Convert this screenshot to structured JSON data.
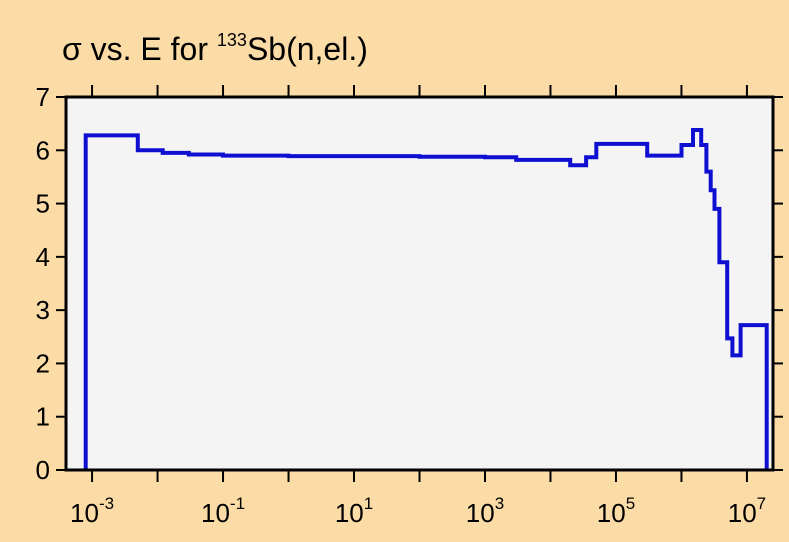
{
  "colors": {
    "background": "#fbdca7",
    "plot_area": "#f4f4f4",
    "line": "#0f0fd2",
    "axis": "#000000"
  },
  "chart_data": {
    "type": "line",
    "step": true,
    "title": {
      "symbol": "σ",
      "text_before_isotope": " vs. E for ",
      "isotope_mass": "133",
      "text_after_isotope": "Sb(n,el.)"
    },
    "xlabel": "",
    "ylabel": "",
    "x_scale": "log",
    "xlim": [
      0.0004,
      25000000
    ],
    "ylim": [
      0,
      7
    ],
    "grid": false,
    "legend": "none",
    "x_ticks": [
      {
        "value": 0.001,
        "base": "10",
        "exp": "-3"
      },
      {
        "value": 0.1,
        "base": "10",
        "exp": "-1"
      },
      {
        "value": 10,
        "base": "10",
        "exp": "1"
      },
      {
        "value": 1000,
        "base": "10",
        "exp": "3"
      },
      {
        "value": 100000,
        "base": "10",
        "exp": "5"
      },
      {
        "value": 10000000,
        "base": "10",
        "exp": "7"
      }
    ],
    "y_ticks": [
      "0",
      "1",
      "2",
      "3",
      "4",
      "5",
      "6",
      "7"
    ],
    "series": [
      {
        "x": [
          0.0008,
          0.0008,
          0.005,
          0.005,
          0.012,
          0.012,
          0.03,
          0.03,
          0.1,
          0.1,
          1,
          1,
          10,
          10,
          100,
          100,
          1000,
          1000,
          3000,
          3000,
          20000,
          20000,
          35000,
          35000,
          50000,
          50000,
          300000,
          300000,
          1000000,
          1000000,
          1500000,
          1500000,
          2000000,
          2000000,
          2400000,
          2400000,
          2800000,
          2800000,
          3200000,
          3200000,
          3800000,
          3800000,
          4200000,
          4200000,
          5000000,
          5000000,
          6000000,
          6000000,
          8000000,
          8000000,
          20000000,
          20000000
        ],
        "y": [
          0,
          6.28,
          6.28,
          6.0,
          6.0,
          5.95,
          5.95,
          5.92,
          5.92,
          5.9,
          5.9,
          5.89,
          5.89,
          5.89,
          5.89,
          5.88,
          5.88,
          5.87,
          5.87,
          5.82,
          5.82,
          5.72,
          5.72,
          5.87,
          5.87,
          6.12,
          6.12,
          5.9,
          5.9,
          6.1,
          6.1,
          6.38,
          6.38,
          6.1,
          6.1,
          5.6,
          5.6,
          5.25,
          5.25,
          4.9,
          4.9,
          3.9,
          3.9,
          3.9,
          3.9,
          2.47,
          2.47,
          2.15,
          2.15,
          2.72,
          2.72,
          0
        ]
      }
    ]
  }
}
